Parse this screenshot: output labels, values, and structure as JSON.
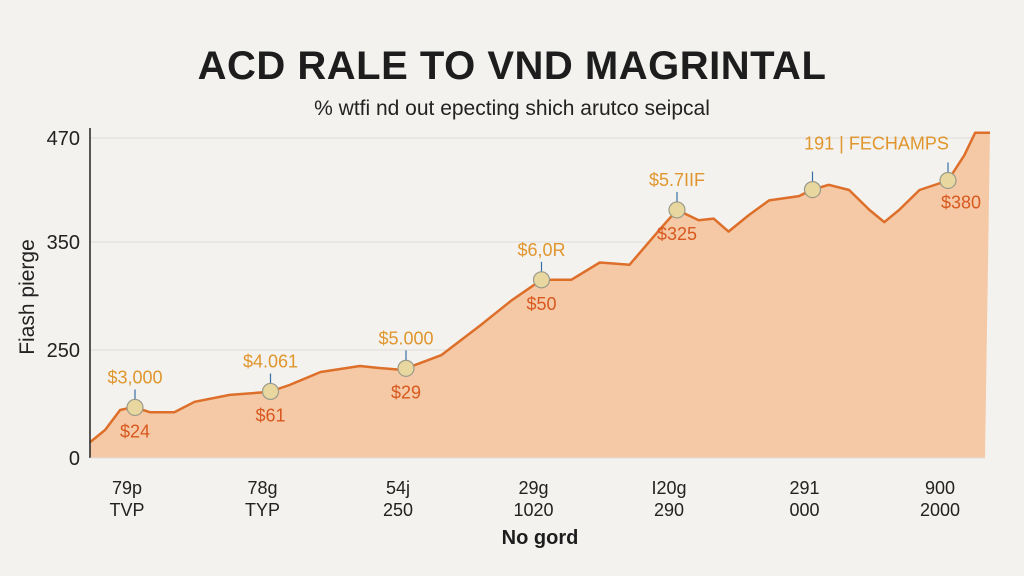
{
  "chart_data": {
    "type": "area",
    "title": "ACD RALE TO VND MAGRINTAL",
    "subtitle": "% wtfi nd out epecting shich arutco seipcal",
    "ylabel": "Fiash pierge",
    "xlabel": "No gord",
    "yticks": [
      0,
      250,
      350,
      470
    ],
    "xtick_labels": [
      [
        "79p",
        "TVP"
      ],
      [
        "78g",
        "TYP"
      ],
      [
        "54j",
        "250"
      ],
      [
        "29g",
        "1020"
      ],
      [
        "I20g",
        "290"
      ],
      [
        "291",
        "000"
      ],
      [
        "900",
        "2000"
      ]
    ],
    "grid": true,
    "colors": {
      "line": "#dd6f2a",
      "fill": "#f5c9a6",
      "marker": "#e9d7a0"
    },
    "series": [
      {
        "x": [
          -0.33,
          -0.22,
          -0.11,
          -0.01,
          0.11,
          0.29,
          0.44,
          0.7,
          0.99,
          1.14,
          1.37,
          1.66,
          1.81,
          1.97,
          2.26,
          2.55,
          2.78,
          3.0,
          3.22,
          3.43,
          3.65,
          3.87,
          4.0,
          4.16,
          4.27,
          4.38,
          4.53,
          4.68,
          4.9,
          4.99,
          5.12,
          5.27,
          5.42,
          5.53,
          5.64,
          5.79,
          6.0,
          6.12,
          6.2,
          6.31
        ],
        "y": [
          37,
          65,
          111,
          118,
          106,
          106,
          130,
          146,
          153,
          169,
          199,
          213,
          208,
          204,
          238,
          273,
          296,
          315,
          315,
          331,
          329,
          364,
          387,
          375,
          377,
          362,
          381,
          398,
          403,
          410,
          416,
          410,
          387,
          373,
          387,
          410,
          421,
          450,
          476,
          476
        ]
      }
    ],
    "annotations": [
      {
        "x": 0,
        "top": "$3,000",
        "bottom": "$24"
      },
      {
        "x": 1,
        "top": "$4.061",
        "bottom": "$61"
      },
      {
        "x": 2,
        "top": "$5.000",
        "bottom": "$29"
      },
      {
        "x": 3,
        "top": "$6,0R",
        "bottom": "$50"
      },
      {
        "x": 4,
        "top": "$5.7IIF",
        "bottom": "$325"
      },
      {
        "x": 5,
        "top": "191 | FECHAMPS",
        "bottom": ""
      },
      {
        "x": 6,
        "top": "",
        "bottom": "$380"
      }
    ]
  }
}
